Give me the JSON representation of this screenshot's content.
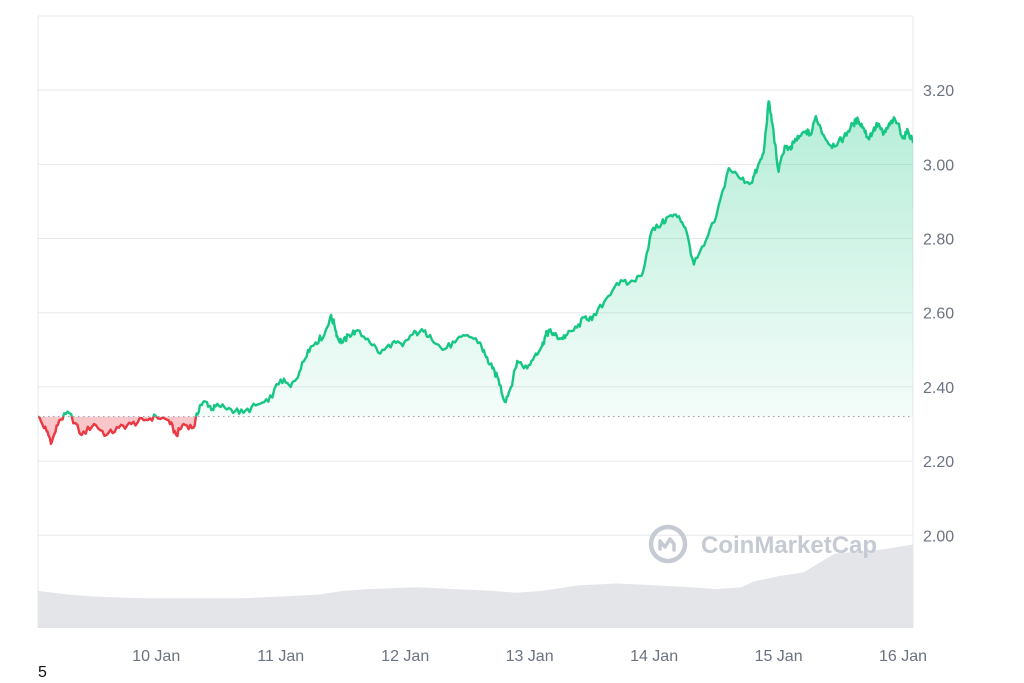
{
  "chart_data": {
    "type": "line",
    "title": "",
    "xlabel": "",
    "ylabel": "",
    "baseline": 2.32,
    "ylim": [
      1.75,
      3.4
    ],
    "y_ticks": [
      {
        "value": 2.0,
        "label": "2.00"
      },
      {
        "value": 2.2,
        "label": "2.20"
      },
      {
        "value": 2.4,
        "label": "2.40"
      },
      {
        "value": 2.6,
        "label": "2.60"
      },
      {
        "value": 2.8,
        "label": "2.80"
      },
      {
        "value": 3.0,
        "label": "3.00"
      },
      {
        "value": 3.2,
        "label": "3.20"
      }
    ],
    "x_ticks": [
      "10 Jan",
      "11 Jan",
      "12 Jan",
      "13 Jan",
      "14 Jan",
      "15 Jan",
      "16 Jan"
    ],
    "grid": true,
    "colors": {
      "up": "#16c784",
      "down": "#ea3943",
      "volume": "#e3e5e9",
      "grid": "#e6e8eb",
      "baseline": "#a1a7b0"
    },
    "price": {
      "x": [
        9.55,
        9.62,
        9.66,
        9.72,
        9.8,
        9.9,
        10.0,
        10.1,
        10.2,
        10.3,
        10.4,
        10.5,
        10.6,
        10.66,
        10.72,
        10.8,
        10.85,
        10.9,
        10.95,
        11.0,
        11.1,
        11.2,
        11.3,
        11.4,
        11.5,
        11.58,
        11.65,
        11.72,
        11.78,
        11.85,
        11.9,
        11.93,
        11.96,
        12.0,
        12.05,
        12.1,
        12.2,
        12.3,
        12.4,
        12.48,
        12.55,
        12.62,
        12.7,
        12.8,
        12.9,
        13.0,
        13.1,
        13.15,
        13.2,
        13.25,
        13.3,
        13.35,
        13.4,
        13.48,
        13.55,
        13.6,
        13.63,
        13.66,
        13.7,
        13.75,
        13.8,
        13.88,
        13.95,
        14.0,
        14.1,
        14.2,
        14.3,
        14.4,
        14.48,
        14.56,
        14.62,
        14.7,
        14.75,
        14.82,
        14.9,
        15.0,
        15.1,
        15.2,
        15.28,
        15.33,
        15.38,
        15.42,
        15.45,
        15.5,
        15.55,
        15.6,
        15.62,
        15.66,
        15.72,
        15.76,
        15.8,
        15.86,
        15.92,
        15.98,
        16.02,
        16.06,
        16.1,
        16.14,
        16.18,
        16.22,
        16.26,
        16.3,
        16.34,
        16.38,
        16.42,
        16.46,
        16.5,
        16.54,
        16.58
      ],
      "y": [
        2.32,
        2.28,
        2.25,
        2.31,
        2.33,
        2.27,
        2.3,
        2.27,
        2.29,
        2.3,
        2.31,
        2.32,
        2.31,
        2.27,
        2.3,
        2.29,
        2.35,
        2.36,
        2.34,
        2.35,
        2.34,
        2.33,
        2.35,
        2.36,
        2.42,
        2.4,
        2.44,
        2.5,
        2.52,
        2.54,
        2.59,
        2.57,
        2.53,
        2.52,
        2.54,
        2.55,
        2.53,
        2.49,
        2.52,
        2.51,
        2.54,
        2.55,
        2.54,
        2.5,
        2.52,
        2.54,
        2.52,
        2.48,
        2.45,
        2.42,
        2.36,
        2.4,
        2.47,
        2.45,
        2.49,
        2.51,
        2.54,
        2.55,
        2.54,
        2.53,
        2.54,
        2.56,
        2.59,
        2.58,
        2.63,
        2.68,
        2.68,
        2.7,
        2.82,
        2.84,
        2.86,
        2.86,
        2.83,
        2.73,
        2.78,
        2.86,
        2.99,
        2.96,
        2.95,
        2.99,
        3.03,
        3.17,
        3.11,
        2.98,
        3.05,
        3.04,
        3.06,
        3.07,
        3.09,
        3.08,
        3.13,
        3.08,
        3.05,
        3.06,
        3.07,
        3.09,
        3.11,
        3.12,
        3.1,
        3.07,
        3.09,
        3.11,
        3.08,
        3.1,
        3.12,
        3.11,
        3.07,
        3.09,
        3.06
      ]
    },
    "volume": {
      "x": [
        9.55,
        9.8,
        10.0,
        10.4,
        10.8,
        11.2,
        11.5,
        11.8,
        12.0,
        12.2,
        12.6,
        12.9,
        13.2,
        13.4,
        13.6,
        13.9,
        14.2,
        14.5,
        14.8,
        15.0,
        15.2,
        15.3,
        15.5,
        15.7,
        15.8,
        15.95,
        16.1,
        16.3,
        16.58
      ],
      "y": [
        1.85,
        1.84,
        1.835,
        1.83,
        1.83,
        1.83,
        1.835,
        1.84,
        1.85,
        1.855,
        1.86,
        1.855,
        1.85,
        1.845,
        1.85,
        1.865,
        1.87,
        1.865,
        1.86,
        1.855,
        1.86,
        1.875,
        1.89,
        1.9,
        1.92,
        1.95,
        1.955,
        1.96,
        1.975
      ]
    }
  },
  "watermark": {
    "text": "CoinMarketCap",
    "icon": "coinmarketcap-logo-icon"
  },
  "footnote": "5"
}
